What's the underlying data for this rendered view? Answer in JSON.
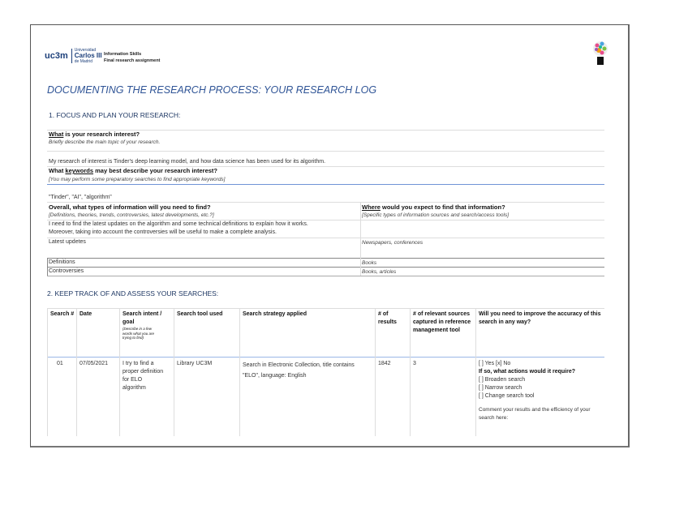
{
  "header": {
    "logo": {
      "mark": "uc3m",
      "line1": "Universidad",
      "line2": "Carlos III",
      "line3": "de Madrid"
    },
    "course": "Information Skills",
    "assignment": "Final research assignment",
    "lightbulb_icon": "lightbulb-icon"
  },
  "title": "DOCUMENTING THE RESEARCH PROCESS: YOUR RESEARCH LOG",
  "section1": {
    "heading": "1.   FOCUS AND PLAN YOUR RESEARCH:",
    "q1": {
      "keyword": "What",
      "rest": " is your research interest?",
      "hint": "Briefly describe the main topic of your research.",
      "answer": "My research of interest is Tinder's deep learning model, and how data science has been used for its algorithm."
    },
    "q2": {
      "pre": "What ",
      "keyword": "keywords",
      "rest": " may best describe your research interest?",
      "hint": "[You may perform some preparatory searches to find appropriate keywords]",
      "answer": "\"Tinder\", \"AI\", \"algorithm\""
    },
    "q3": {
      "question": "Overall, what types of information will you need to find?",
      "hint": "[Definitions, theories, trends, controversies, latest developments, etc.?]",
      "answer_line1": "I need to find the latest updates on the algorithm and some technical definitions to explain how it works.",
      "answer_line2": "Moreover, taking into account the controversies will be useful to make a complete analysis."
    },
    "q4": {
      "keyword": "Where",
      "rest": " would you expect to find that information?",
      "hint": "[Specific types of information sources and search/access tools]"
    },
    "rows": [
      {
        "what": "Latest updetes",
        "where": "Newspapers, conferences"
      },
      {
        "what": "Definitions",
        "where": "Books"
      },
      {
        "what": "Controversies",
        "where": "Books, articles"
      }
    ]
  },
  "section2": {
    "heading": "2. KEEP TRACK OF AND ASSESS YOUR SEARCHES:",
    "columns": [
      "Search #",
      "Date",
      "Search intent / goal",
      "Search tool used",
      "Search strategy applied",
      "# of results",
      "# of relevant sources captured in reference management tool",
      "Will you need to improve the accuracy of this search in any way?"
    ],
    "intent_hint": "(Describe in a few words what you are trying to find)",
    "rows": [
      {
        "number": "01",
        "date": "07/05/2021",
        "intent": "I try to find a proper definition for ELO algorithm",
        "tool": "Library UC3M",
        "strategy": "Search in Electronic Collection, title contains \"ELO\", language: English",
        "results": "1842",
        "relevant": "3",
        "improve": {
          "yes_no": "[ ] Yes [x] No",
          "actions_q": "If so, what actions would it require?",
          "opt1": "[ ] Broaden search",
          "opt2": "[ ] Narrow search",
          "opt3": "[ ] Change search tool",
          "comment": "Comment your results and the efficiency of your search here:"
        }
      }
    ]
  }
}
